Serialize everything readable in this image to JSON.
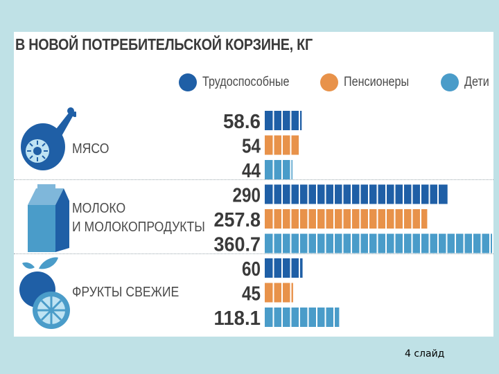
{
  "slide_label": "4 слайд",
  "chart_data": {
    "type": "bar",
    "orientation": "horizontal",
    "title": "В НОВОЙ ПОТРЕБИТЕЛЬСКОЙ КОРЗИНЕ, КГ",
    "legend_position": "top-right",
    "grid": false,
    "categories": [
      "МЯСО",
      "МОЛОКО И МОЛОКОПРОДУКТЫ",
      "ФРУКТЫ СВЕЖИЕ"
    ],
    "category_labels": [
      [
        "МЯСО"
      ],
      [
        "МОЛОКО",
        "И МОЛОКОПРОДУКТЫ"
      ],
      [
        "ФРУКТЫ СВЕЖИЕ"
      ]
    ],
    "series": [
      {
        "name": "Трудоспособные",
        "color": "#1f5fa6",
        "values": [
          58.6,
          290,
          60
        ],
        "labels": [
          "58.6",
          "290",
          "60"
        ]
      },
      {
        "name": "Пенсионеры",
        "color": "#e8924a",
        "values": [
          54,
          257.8,
          45
        ],
        "labels": [
          "54",
          "257.8",
          "45"
        ]
      },
      {
        "name": "Дети",
        "color": "#4a9cc9",
        "values": [
          44,
          360.7,
          118.1
        ],
        "labels": [
          "44",
          "360.7",
          "118.1"
        ]
      }
    ],
    "xlim": [
      0,
      360.7
    ],
    "icons": [
      "meat-icon",
      "milk-carton-icon",
      "fruits-icon"
    ]
  }
}
